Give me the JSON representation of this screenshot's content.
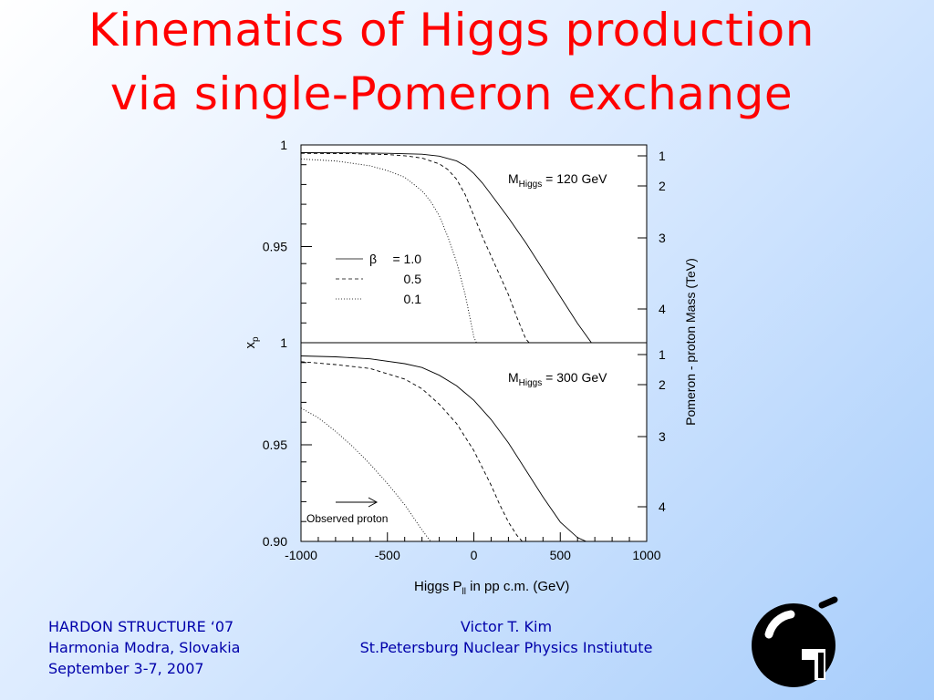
{
  "slide": {
    "title_line1": "Kinematics of Higgs production",
    "title_line2": "via single-Pomeron exchange",
    "footer_left": [
      "HARDON STRUCTURE ‘07",
      "Harmonia Modra, Slovakia",
      "September 3-7, 2007"
    ],
    "footer_center": [
      "Victor T.  Kim",
      "St.Petersburg Nuclear Physics Instiutute"
    ],
    "logo_icon": "pnpi-logo-icon",
    "title_color": "#ff0000",
    "footer_color": "#0000aa"
  },
  "chart_data": [
    {
      "type": "line",
      "panel": "top",
      "annotation": "M_Higgs = 120 GeV",
      "annotation_base": "M",
      "annotation_sub": "Higgs",
      "annotation_rest": " = 120 GeV",
      "xlabel": "",
      "ylabel": "x_p",
      "xlim": [
        -1000,
        1000
      ],
      "ylim": [
        0.9,
        1.0
      ],
      "ytick_labels": [
        "1",
        "0.95"
      ],
      "right_axis_label": "Pomeron - proton Mass (TeV)",
      "right_ticks": [
        "1",
        "2",
        "3",
        "4"
      ],
      "legend": {
        "symbol": "β",
        "entries": [
          {
            "label": "= 1.0",
            "style": "solid"
          },
          {
            "label": "0.5",
            "style": "dashed"
          },
          {
            "label": "0.1",
            "style": "dotted"
          }
        ]
      },
      "series": [
        {
          "beta": 1.0,
          "style": "solid",
          "x": [
            -1000,
            -700,
            -500,
            -300,
            -200,
            -100,
            -50,
            0,
            50,
            100,
            200,
            300,
            400,
            500,
            600,
            680,
            1000
          ],
          "y": [
            0.9988,
            0.9987,
            0.9985,
            0.998,
            0.997,
            0.9945,
            0.992,
            0.988,
            0.983,
            0.977,
            0.965,
            0.952,
            0.938,
            0.924,
            0.91,
            0.9,
            0.9
          ]
        },
        {
          "beta": 0.5,
          "style": "dashed",
          "x": [
            -1000,
            -700,
            -500,
            -400,
            -300,
            -200,
            -150,
            -100,
            -50,
            0,
            50,
            100,
            150,
            200,
            250,
            300,
            320,
            1000
          ],
          "y": [
            0.9985,
            0.9983,
            0.9978,
            0.9972,
            0.996,
            0.993,
            0.99,
            0.985,
            0.977,
            0.966,
            0.955,
            0.945,
            0.935,
            0.925,
            0.913,
            0.902,
            0.9,
            0.9
          ]
        },
        {
          "beta": 0.1,
          "style": "dotted",
          "x": [
            -1000,
            -800,
            -600,
            -500,
            -400,
            -300,
            -250,
            -200,
            -150,
            -100,
            -50,
            -20,
            0,
            15,
            1000
          ],
          "y": [
            0.9955,
            0.9945,
            0.992,
            0.9895,
            0.986,
            0.979,
            0.9735,
            0.966,
            0.955,
            0.942,
            0.925,
            0.912,
            0.903,
            0.9,
            0.9
          ]
        }
      ]
    },
    {
      "type": "line",
      "panel": "bottom",
      "annotation": "M_Higgs = 300 GeV",
      "annotation_base": "M",
      "annotation_sub": "Higgs",
      "annotation_rest": " = 300 GeV",
      "xlabel": "Higgs P_ll in pp c.m.    (GeV)",
      "xlabel_base": "Higgs P",
      "xlabel_sub": "ll",
      "xlabel_rest": " in pp c.m.    (GeV)",
      "ylabel": "",
      "xlim": [
        -1000,
        1000
      ],
      "ylim": [
        0.9,
        1.0
      ],
      "xtick_labels": [
        "-1000",
        "-500",
        "0",
        "500",
        "1000"
      ],
      "ytick_labels": [
        "1",
        "0.95",
        "0.90"
      ],
      "right_ticks": [
        "1",
        "2",
        "3",
        "4"
      ],
      "arrow_label": "Observed proton",
      "series": [
        {
          "beta": 1.0,
          "style": "solid",
          "x": [
            -1000,
            -800,
            -600,
            -400,
            -300,
            -200,
            -100,
            0,
            100,
            200,
            300,
            400,
            500,
            600,
            650,
            1000
          ],
          "y": [
            0.996,
            0.9955,
            0.9945,
            0.992,
            0.99,
            0.986,
            0.9805,
            0.973,
            0.963,
            0.951,
            0.937,
            0.923,
            0.91,
            0.902,
            0.9,
            0.9
          ]
        },
        {
          "beta": 0.5,
          "style": "dashed",
          "x": [
            -1000,
            -800,
            -600,
            -400,
            -300,
            -200,
            -100,
            0,
            50,
            100,
            150,
            200,
            250,
            280,
            1000
          ],
          "y": [
            0.993,
            0.9915,
            0.9895,
            0.984,
            0.979,
            0.971,
            0.961,
            0.947,
            0.938,
            0.929,
            0.919,
            0.91,
            0.903,
            0.9,
            0.9
          ]
        },
        {
          "beta": 0.1,
          "style": "dotted",
          "x": [
            -1000,
            -900,
            -800,
            -700,
            -600,
            -500,
            -400,
            -300,
            -250,
            1000
          ],
          "y": [
            0.969,
            0.964,
            0.957,
            0.949,
            0.94,
            0.93,
            0.919,
            0.906,
            0.9,
            0.9
          ]
        }
      ]
    }
  ]
}
